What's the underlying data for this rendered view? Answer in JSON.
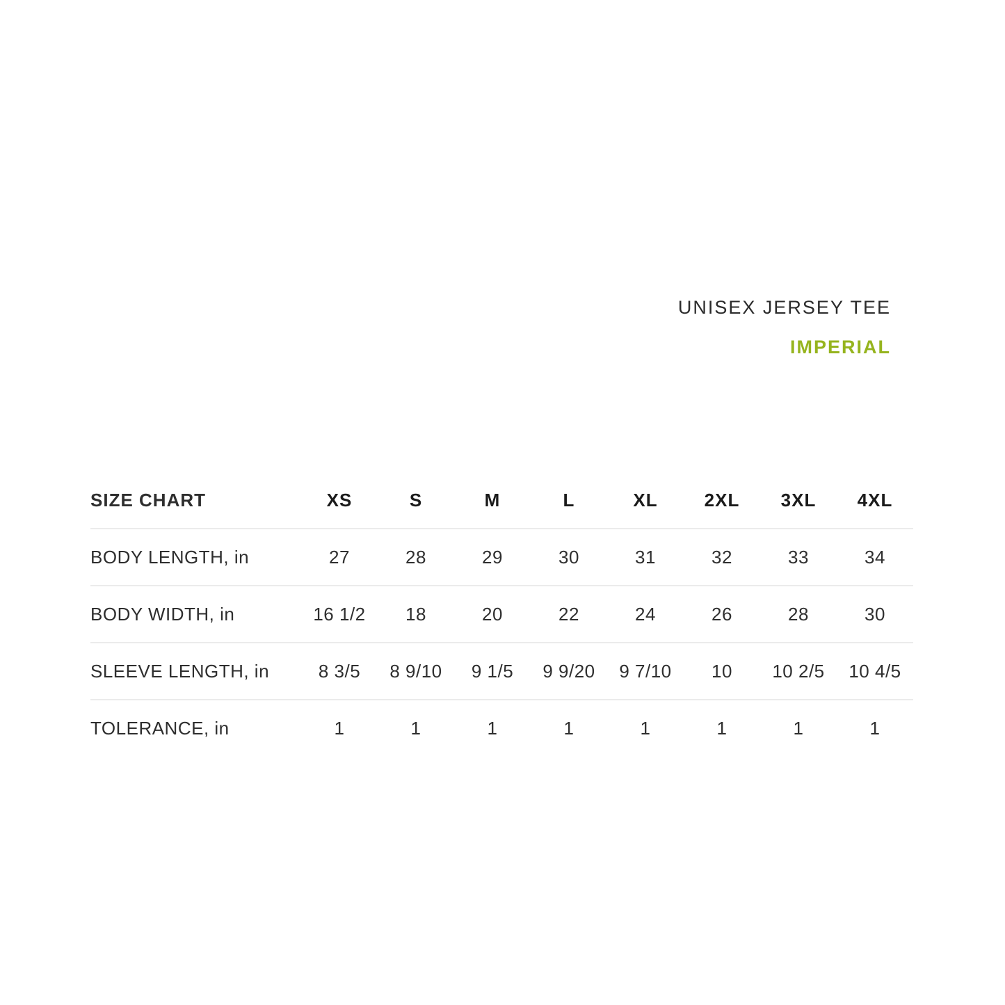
{
  "header": {
    "product_title": "UNISEX JERSEY TEE",
    "unit_label": "IMPERIAL",
    "unit_label_color": "#96b41e"
  },
  "chart_data": {
    "type": "table",
    "title": "SIZE CHART",
    "columns": [
      "XS",
      "S",
      "M",
      "L",
      "XL",
      "2XL",
      "3XL",
      "4XL"
    ],
    "rows": [
      {
        "label": "BODY LENGTH, in",
        "values": [
          "27",
          "28",
          "29",
          "30",
          "31",
          "32",
          "33",
          "34"
        ]
      },
      {
        "label": "BODY WIDTH, in",
        "values": [
          "16 1/2",
          "18",
          "20",
          "22",
          "24",
          "26",
          "28",
          "30"
        ]
      },
      {
        "label": "SLEEVE LENGTH, in",
        "values": [
          "8 3/5",
          "8 9/10",
          "9 1/5",
          "9 9/20",
          "9 7/10",
          "10",
          "10 2/5",
          "10 4/5"
        ]
      },
      {
        "label": "TOLERANCE, in",
        "values": [
          "1",
          "1",
          "1",
          "1",
          "1",
          "1",
          "1",
          "1"
        ]
      }
    ]
  }
}
